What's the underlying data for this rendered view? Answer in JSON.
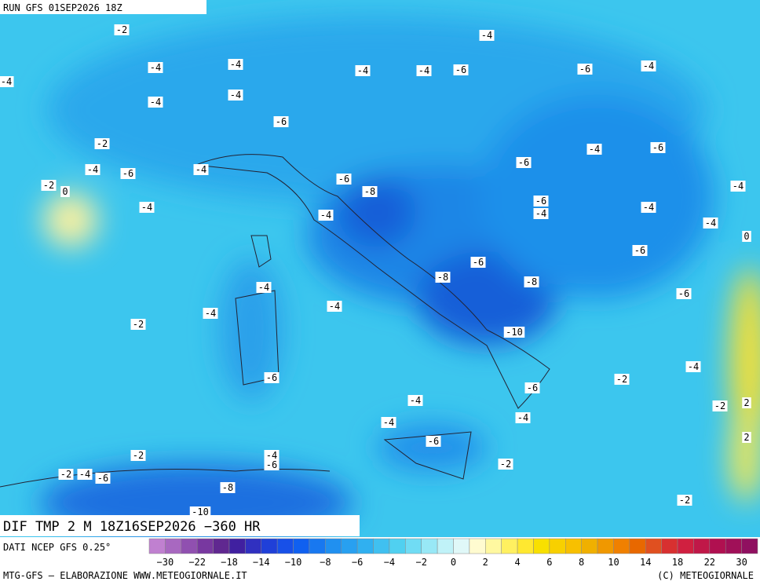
{
  "header": {
    "run": "RUN GFS 01SEP2026 18Z"
  },
  "map": {
    "title": "DIF TMP 2 M 18Z16SEP2026 −360 HR",
    "source": "DATI NCEP GFS 0.25°",
    "contour_labels": [
      "-2",
      "-4",
      "-4",
      "-4",
      "-4",
      "-4",
      "-4",
      "-6",
      "-6",
      "-4",
      "-4",
      "-4",
      "-6",
      "-2",
      "-4",
      "-6",
      "-4",
      "-6",
      "-4",
      "-6",
      "-2",
      "0",
      "-6",
      "-8",
      "-4",
      "-4",
      "-6",
      "-4",
      "-4",
      "-4",
      "-4",
      "0",
      "-6",
      "-6",
      "-8",
      "-8",
      "-4",
      "-6",
      "-4",
      "-4",
      "-2",
      "-10",
      "-4",
      "-6",
      "-2",
      "-6",
      "-4",
      "-2",
      "2",
      "-4",
      "-4",
      "-6",
      "2",
      "-2",
      "-4",
      "-6",
      "-2",
      "-2",
      "-4",
      "-6",
      "-8",
      "-2",
      "-10"
    ]
  },
  "legend": {
    "colors": [
      "#c080d0",
      "#a868c0",
      "#9050b0",
      "#7838a0",
      "#602890",
      "#4020a0",
      "#3030c0",
      "#2040d8",
      "#1850e8",
      "#1060f0",
      "#1878f0",
      "#2090f0",
      "#28a0f0",
      "#30b0f0",
      "#40c0f0",
      "#50d0f0",
      "#70dcf4",
      "#98e8f6",
      "#c0f2f8",
      "#e0f8f8",
      "#fffbd0",
      "#fff8a0",
      "#fff060",
      "#ffe830",
      "#f8e000",
      "#f8d000",
      "#f8c000",
      "#f0b000",
      "#f09800",
      "#f08000",
      "#e86800",
      "#e05020",
      "#d83030",
      "#d02040",
      "#c01848",
      "#b01050",
      "#a01058",
      "#901060"
    ],
    "labels": [
      "−30",
      "−22",
      "−18",
      "−14",
      "−10",
      "−8",
      "−6",
      "−4",
      "−2",
      "0",
      "2",
      "4",
      "6",
      "8",
      "10",
      "14",
      "18",
      "22",
      "30"
    ]
  },
  "footer": {
    "left": "MTG-GFS — ELABORAZIONE WWW.METEOGIORNALE.IT",
    "right": "(C) METEOGIORNALE"
  }
}
